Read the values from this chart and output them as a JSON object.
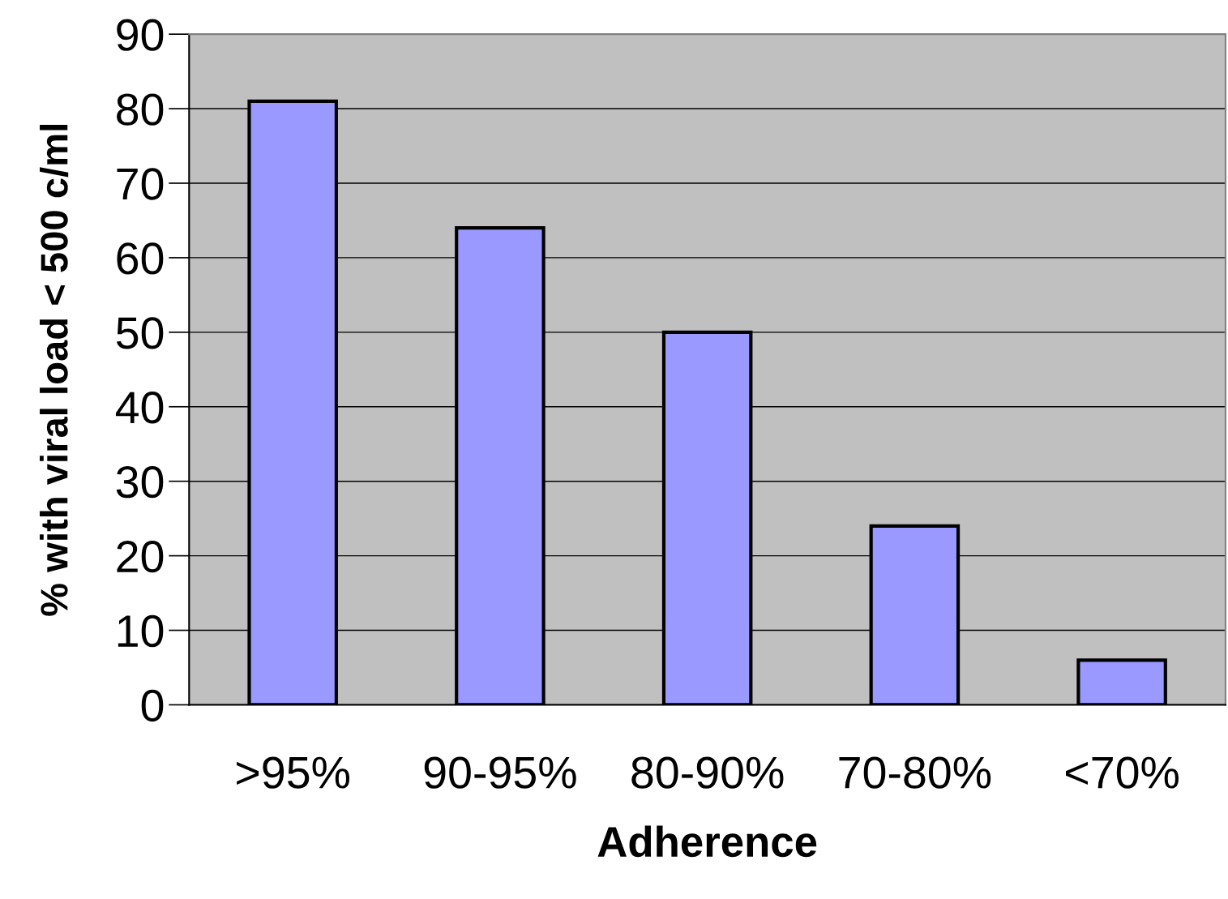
{
  "chart_data": {
    "type": "bar",
    "categories": [
      ">95%",
      "90-95%",
      "80-90%",
      "70-80%",
      "<70%"
    ],
    "values": [
      81,
      64,
      50,
      24,
      6
    ],
    "color": "#9999ff",
    "xlabel": "Adherence",
    "ylabel": "% with viral load < 500 c/ml",
    "ylim": [
      0,
      90
    ],
    "yticks": [
      0,
      10,
      20,
      30,
      40,
      50,
      60,
      70,
      80,
      90
    ],
    "grid": "y"
  }
}
